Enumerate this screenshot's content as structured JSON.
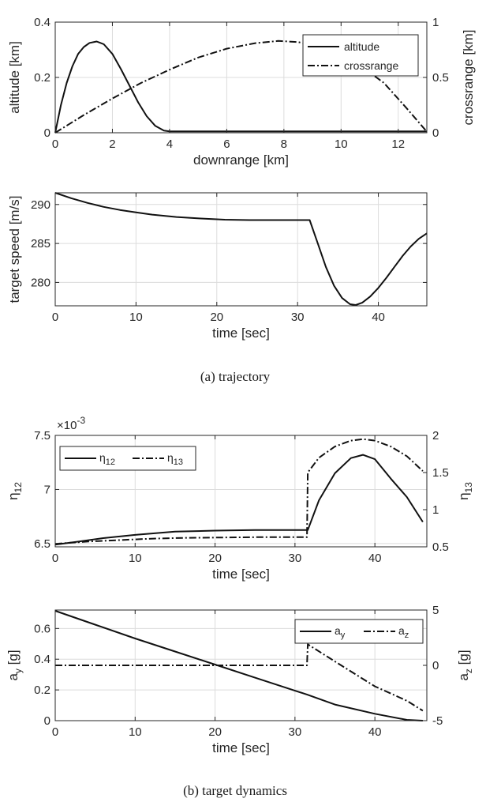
{
  "captions": {
    "a": "(a)  trajectory",
    "b": "(b)  target dynamics"
  },
  "chart_data": [
    {
      "id": "p1",
      "type": "line",
      "xlabel": "downrange [km]",
      "ylabel": "altitude [km]",
      "y2label": "crossrange [km]",
      "xlim": [
        0,
        13
      ],
      "ylim": [
        0,
        0.4
      ],
      "y2lim": [
        0,
        1
      ],
      "xticks": [
        0,
        2,
        4,
        6,
        8,
        10,
        12
      ],
      "yticks": [
        0,
        0.2,
        0.4
      ],
      "y2ticks": [
        0,
        0.5,
        1
      ],
      "grid": true,
      "legend_position": "top-right",
      "series": [
        {
          "name": "altitude",
          "axis": "left",
          "style": "solid",
          "x": [
            0,
            0.2,
            0.4,
            0.6,
            0.8,
            1.0,
            1.2,
            1.45,
            1.7,
            2.0,
            2.3,
            2.6,
            2.9,
            3.2,
            3.5,
            3.8,
            4.0,
            6,
            8,
            10,
            12,
            13
          ],
          "y": [
            0,
            0.1,
            0.18,
            0.24,
            0.285,
            0.31,
            0.325,
            0.33,
            0.32,
            0.285,
            0.23,
            0.17,
            0.11,
            0.06,
            0.025,
            0.008,
            0.005,
            0.005,
            0.005,
            0.005,
            0.005,
            0.005
          ]
        },
        {
          "name": "crossrange",
          "axis": "right",
          "style": "dashdot",
          "x": [
            0,
            1,
            2,
            3,
            4,
            5,
            6,
            7,
            7.8,
            8.5,
            9.5,
            10.5,
            11.5,
            12.3,
            13
          ],
          "y": [
            0,
            0.16,
            0.31,
            0.45,
            0.57,
            0.68,
            0.76,
            0.81,
            0.83,
            0.82,
            0.76,
            0.64,
            0.45,
            0.22,
            0.01
          ]
        }
      ]
    },
    {
      "id": "p2",
      "type": "line",
      "xlabel": "time [sec]",
      "ylabel": "target speed [m/s]",
      "xlim": [
        0,
        46
      ],
      "ylim": [
        277,
        291.5
      ],
      "xticks": [
        0,
        10,
        20,
        30,
        40
      ],
      "yticks": [
        280,
        285,
        290
      ],
      "grid": true,
      "series": [
        {
          "style": "solid",
          "x": [
            0,
            2,
            4,
            6,
            8,
            10,
            12,
            15,
            18,
            21,
            24,
            27,
            30,
            31.5,
            32.5,
            33.5,
            34.5,
            35.5,
            36.5,
            37.2,
            38,
            39,
            40,
            41,
            42,
            43,
            44,
            45,
            46
          ],
          "y": [
            291.5,
            290.8,
            290.2,
            289.7,
            289.3,
            289.0,
            288.7,
            288.4,
            288.2,
            288.05,
            288.0,
            288.0,
            288.0,
            288.0,
            285.0,
            282.0,
            279.6,
            278.0,
            277.2,
            277.1,
            277.4,
            278.2,
            279.3,
            280.6,
            282.0,
            283.4,
            284.6,
            285.6,
            286.3
          ]
        }
      ]
    },
    {
      "id": "p3",
      "type": "line",
      "xlabel": "time [sec]",
      "ylabel": "η12",
      "y2label": "η13",
      "y_exponent": "-3",
      "xlim": [
        0,
        46.5
      ],
      "ylim": [
        6.47,
        7.5
      ],
      "y2lim": [
        0.5,
        2
      ],
      "xticks": [
        0,
        10,
        20,
        30,
        40
      ],
      "yticks": [
        6.5,
        7,
        7.5
      ],
      "y2ticks": [
        0.5,
        1,
        1.5,
        2
      ],
      "grid": true,
      "legend_position": "top-left",
      "series": [
        {
          "name": "η12",
          "axis": "left",
          "style": "solid",
          "x": [
            0,
            3,
            6,
            10,
            15,
            20,
            25,
            31.5,
            31.6,
            33,
            35,
            37,
            38.5,
            40,
            42,
            44,
            46
          ],
          "y": [
            6.49,
            6.52,
            6.55,
            6.58,
            6.61,
            6.62,
            6.625,
            6.625,
            6.625,
            6.9,
            7.15,
            7.29,
            7.32,
            7.28,
            7.1,
            6.93,
            6.7
          ]
        },
        {
          "name": "η13",
          "axis": "right",
          "style": "dashdot",
          "x": [
            0,
            4,
            8,
            12,
            16,
            20,
            25,
            31.5,
            31.6,
            33,
            35,
            37,
            38.5,
            40,
            42,
            44,
            46
          ],
          "y": [
            0.54,
            0.57,
            0.59,
            0.61,
            0.62,
            0.625,
            0.63,
            0.63,
            1.5,
            1.7,
            1.85,
            1.93,
            1.95,
            1.93,
            1.85,
            1.72,
            1.52
          ]
        }
      ]
    },
    {
      "id": "p4",
      "type": "line",
      "xlabel": "time [sec]",
      "ylabel": "ay [g]",
      "y2label": "az [g]",
      "xlim": [
        0,
        46.5
      ],
      "ylim": [
        0,
        0.72
      ],
      "y2lim": [
        -5,
        5
      ],
      "xticks": [
        0,
        10,
        20,
        30,
        40
      ],
      "yticks": [
        0,
        0.2,
        0.4,
        0.6
      ],
      "y2ticks": [
        -5,
        0,
        5
      ],
      "grid": true,
      "legend_position": "top-right",
      "series": [
        {
          "name": "ay",
          "axis": "left",
          "style": "solid",
          "x": [
            0,
            5,
            10,
            15,
            20,
            25,
            30,
            31.5,
            35,
            40,
            44,
            46
          ],
          "y": [
            0.715,
            0.625,
            0.535,
            0.45,
            0.365,
            0.28,
            0.195,
            0.17,
            0.105,
            0.045,
            0.005,
            0.0
          ]
        },
        {
          "name": "az",
          "axis": "right",
          "style": "dashdot",
          "x": [
            0,
            5,
            10,
            20,
            31.5,
            31.6,
            36,
            40,
            44,
            46
          ],
          "y": [
            0,
            0,
            0,
            0,
            0,
            1.9,
            -0.1,
            -1.9,
            -3.2,
            -4.1
          ]
        }
      ]
    }
  ]
}
